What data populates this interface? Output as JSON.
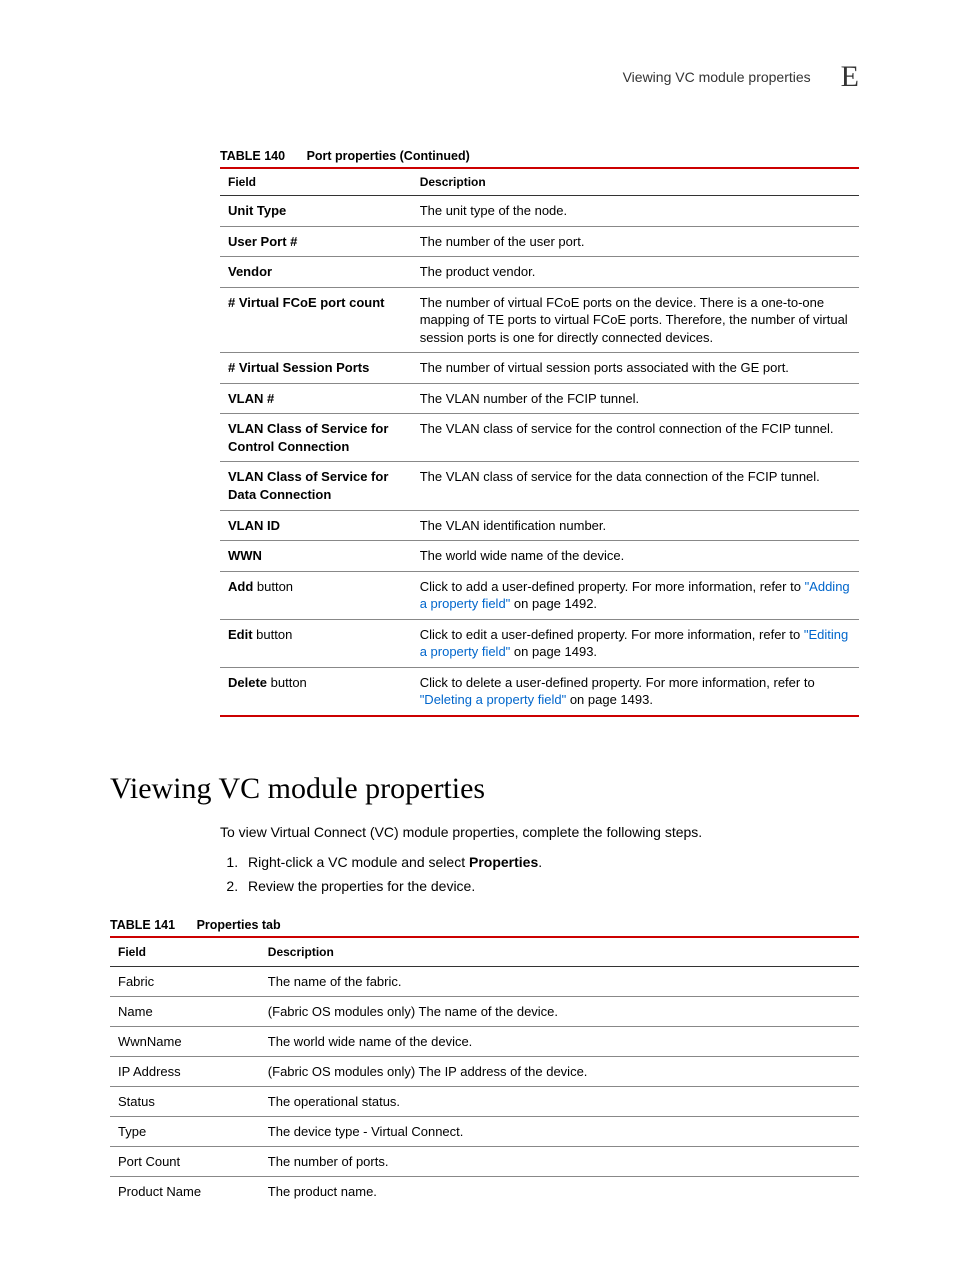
{
  "header": {
    "title": "Viewing VC module properties",
    "letter": "E"
  },
  "colors": {
    "rule": "#cc0000",
    "link": "#0066cc"
  },
  "table140": {
    "number": "TABLE 140",
    "title": "Port properties (Continued)",
    "columns": [
      "Field",
      "Description"
    ],
    "rows": [
      {
        "field_parts": [
          {
            "text": "Unit Type",
            "bold": true
          }
        ],
        "desc_parts": [
          {
            "text": "The unit type of the node."
          }
        ]
      },
      {
        "field_parts": [
          {
            "text": "User Port #",
            "bold": true
          }
        ],
        "desc_parts": [
          {
            "text": "The number of the user port."
          }
        ]
      },
      {
        "field_parts": [
          {
            "text": "Vendor",
            "bold": true
          }
        ],
        "desc_parts": [
          {
            "text": "The product vendor."
          }
        ]
      },
      {
        "field_parts": [
          {
            "text": "# Virtual FCoE port count",
            "bold": true
          }
        ],
        "desc_parts": [
          {
            "text": "The number of virtual FCoE ports on the device. There is a one-to-one mapping of TE ports to virtual FCoE ports. Therefore, the number of virtual session ports is one for directly connected devices."
          }
        ]
      },
      {
        "field_parts": [
          {
            "text": "# Virtual Session Ports",
            "bold": true
          }
        ],
        "desc_parts": [
          {
            "text": "The number of virtual session ports associated with the GE port."
          }
        ]
      },
      {
        "field_parts": [
          {
            "text": "VLAN #",
            "bold": true
          }
        ],
        "desc_parts": [
          {
            "text": "The VLAN number of the FCIP tunnel."
          }
        ]
      },
      {
        "field_parts": [
          {
            "text": "VLAN Class of Service for Control Connection",
            "bold": true
          }
        ],
        "desc_parts": [
          {
            "text": "The VLAN class of service for the control connection of the FCIP tunnel."
          }
        ]
      },
      {
        "field_parts": [
          {
            "text": "VLAN Class of Service for Data Connection",
            "bold": true
          }
        ],
        "desc_parts": [
          {
            "text": "The VLAN class of service for the data connection of the FCIP tunnel."
          }
        ]
      },
      {
        "field_parts": [
          {
            "text": "VLAN ID",
            "bold": true
          }
        ],
        "desc_parts": [
          {
            "text": "The VLAN identification number."
          }
        ]
      },
      {
        "field_parts": [
          {
            "text": "WWN",
            "bold": true
          }
        ],
        "desc_parts": [
          {
            "text": "The world wide name of the device."
          }
        ]
      },
      {
        "field_parts": [
          {
            "text": "Add",
            "bold": true
          },
          {
            "text": " button",
            "bold": false
          }
        ],
        "desc_parts": [
          {
            "text": "Click to add a user-defined property. For more information, refer to "
          },
          {
            "text": "\"Adding a property field\"",
            "link": true
          },
          {
            "text": " on page 1492."
          }
        ]
      },
      {
        "field_parts": [
          {
            "text": "Edit",
            "bold": true
          },
          {
            "text": " button",
            "bold": false
          }
        ],
        "desc_parts": [
          {
            "text": "Click to edit a user-defined property. For more information, refer to "
          },
          {
            "text": "\"Editing a property field\"",
            "link": true
          },
          {
            "text": " on page 1493."
          }
        ]
      },
      {
        "field_parts": [
          {
            "text": "Delete",
            "bold": true
          },
          {
            "text": " button",
            "bold": false
          }
        ],
        "desc_parts": [
          {
            "text": "Click to delete a user-defined property. For more information, refer to "
          },
          {
            "text": "\"Deleting a property field\"",
            "link": true
          },
          {
            "text": " on page 1493."
          }
        ]
      }
    ]
  },
  "section": {
    "heading": "Viewing VC module properties",
    "intro": "To view Virtual Connect (VC) module properties, complete the following steps.",
    "steps": [
      {
        "parts": [
          {
            "text": "Right-click a VC module and select "
          },
          {
            "text": "Properties",
            "bold": true
          },
          {
            "text": "."
          }
        ]
      },
      {
        "parts": [
          {
            "text": "Review the properties for the device."
          }
        ]
      }
    ]
  },
  "table141": {
    "number": "TABLE 141",
    "title": "Properties tab",
    "columns": [
      "Field",
      "Description"
    ],
    "rows": [
      {
        "field": "Fabric",
        "desc": "The name of the fabric."
      },
      {
        "field": "Name",
        "desc": "(Fabric OS modules only) The name of the device."
      },
      {
        "field": "WwnName",
        "desc": "The world wide name of the device."
      },
      {
        "field": "IP Address",
        "desc": "(Fabric OS modules only) The IP address of the device."
      },
      {
        "field": "Status",
        "desc": "The operational status."
      },
      {
        "field": "Type",
        "desc": "The device type - Virtual Connect."
      },
      {
        "field": "Port Count",
        "desc": "The number of ports."
      },
      {
        "field": "Product Name",
        "desc": "The product name."
      }
    ]
  }
}
